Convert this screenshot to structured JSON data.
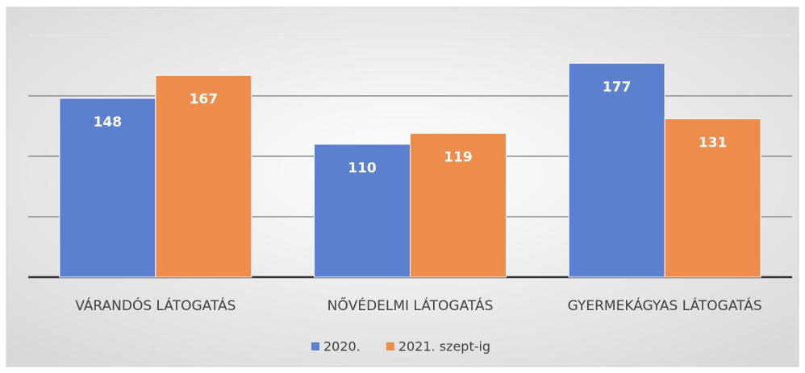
{
  "chart_data": {
    "type": "bar",
    "categories": [
      "VÁRANDÓS LÁTOGATÁS",
      "NŐVÉDELMI LÁTOGATÁS",
      "GYERMEKÁGYAS LÁTOGATÁS"
    ],
    "series": [
      {
        "name": "2020.",
        "color": "#5b80d0",
        "values": [
          148,
          110,
          177
        ]
      },
      {
        "name": "2021. szept-ig",
        "color": "#ee8c4b",
        "values": [
          167,
          119,
          131
        ]
      }
    ],
    "ylim": [
      0,
      200
    ],
    "yticks": [
      0,
      50,
      100,
      150,
      200
    ],
    "grid": true,
    "legend": "bottom"
  }
}
